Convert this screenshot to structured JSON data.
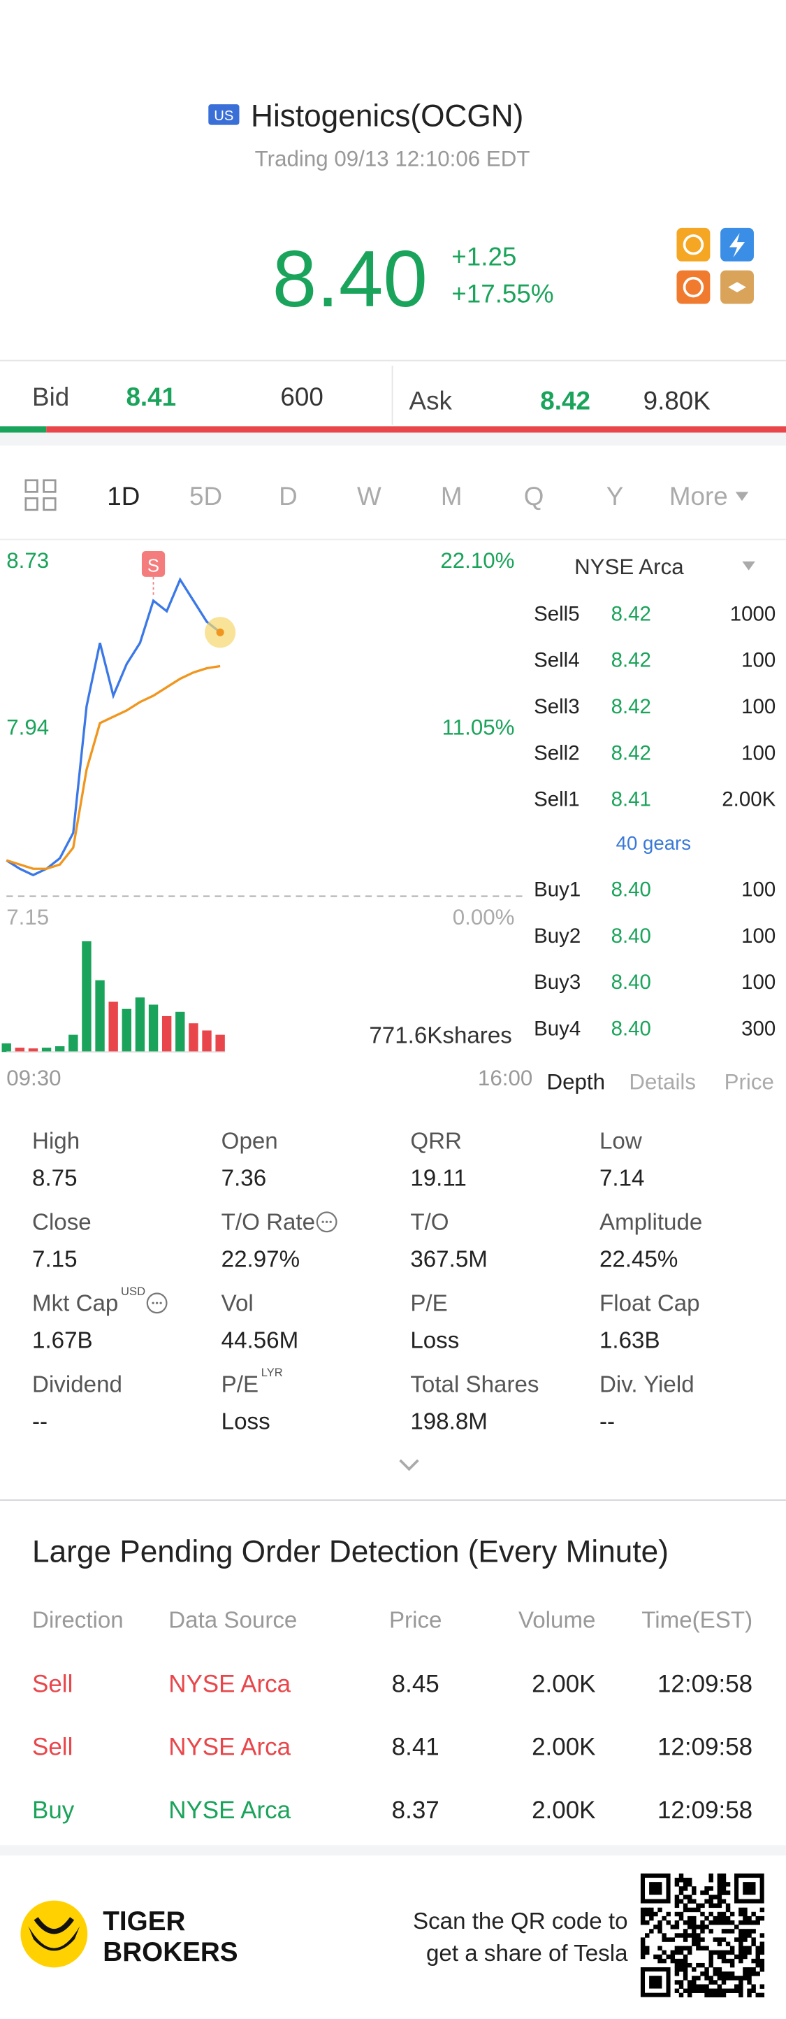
{
  "header": {
    "market": "US",
    "title": "Histogenics(OCGN)",
    "status": "Trading 09/13 12:10:06 EDT",
    "price": "8.40",
    "change": "+1.25",
    "change_percent": "+17.55%"
  },
  "quote": {
    "bid_label": "Bid",
    "bid_price": "8.41",
    "bid_size": "600",
    "ask_label": "Ask",
    "ask_price": "8.42",
    "ask_size": "9.80K"
  },
  "periods": [
    "1D",
    "5D",
    "D",
    "W",
    "M",
    "Q",
    "Y",
    "More"
  ],
  "chart_data": {
    "type": "line",
    "x": [
      "09:30",
      "09:40",
      "09:50",
      "10:00",
      "10:10",
      "10:20",
      "10:30",
      "10:40",
      "10:50",
      "11:00",
      "11:10",
      "11:20",
      "11:30",
      "11:40",
      "11:50",
      "12:00",
      "12:10"
    ],
    "series": [
      {
        "color": "#3b78e7",
        "values": [
          7.32,
          7.28,
          7.25,
          7.28,
          7.33,
          7.45,
          8.05,
          8.35,
          8.1,
          8.25,
          8.35,
          8.55,
          8.5,
          8.65,
          8.55,
          8.45,
          8.4
        ]
      },
      {
        "color": "#f0961e",
        "values": [
          7.32,
          7.3,
          7.28,
          7.28,
          7.3,
          7.38,
          7.75,
          7.97,
          8.0,
          8.03,
          8.07,
          8.1,
          8.14,
          8.18,
          8.21,
          8.23,
          8.24
        ]
      }
    ],
    "ylim": [
      7.15,
      8.73
    ],
    "yticks": [
      7.15,
      7.94,
      8.73
    ],
    "y2lim": [
      0,
      22.1
    ],
    "y2ticks": [
      {
        "value": 0,
        "label": "0.00%"
      },
      {
        "value": 11.05,
        "label": "11.05%"
      },
      {
        "value": 22.1,
        "label": "22.10%"
      }
    ],
    "xticks": [
      "09:30",
      "16:00"
    ],
    "signal": {
      "label": "S",
      "x": "11:20"
    },
    "volume": {
      "label": "771.6Kshares",
      "values": [
        60,
        30,
        25,
        30,
        40,
        120,
        771.6,
        500,
        350,
        300,
        380,
        330,
        250,
        280,
        200,
        150,
        120
      ]
    },
    "up_color": "#1aa35a",
    "down_color": "#e8464a"
  },
  "order_book": {
    "exchange": "NYSE Arca",
    "sells": [
      {
        "label": "Sell5",
        "price": "8.42",
        "size": "1000"
      },
      {
        "label": "Sell4",
        "price": "8.42",
        "size": "100"
      },
      {
        "label": "Sell3",
        "price": "8.42",
        "size": "100"
      },
      {
        "label": "Sell2",
        "price": "8.42",
        "size": "100"
      },
      {
        "label": "Sell1",
        "price": "8.41",
        "size": "2.00K"
      }
    ],
    "levels": "40 gears",
    "buys": [
      {
        "label": "Buy1",
        "price": "8.40",
        "size": "100"
      },
      {
        "label": "Buy2",
        "price": "8.40",
        "size": "100"
      },
      {
        "label": "Buy3",
        "price": "8.40",
        "size": "100"
      },
      {
        "label": "Buy4",
        "price": "8.40",
        "size": "300"
      }
    ],
    "tabs": [
      "Depth",
      "Details",
      "Price"
    ]
  },
  "stats": [
    {
      "label": "High",
      "value": "8.75"
    },
    {
      "label": "Open",
      "value": "7.36"
    },
    {
      "label": "QRR",
      "value": "19.11"
    },
    {
      "label": "Low",
      "value": "7.14"
    },
    {
      "label": "Close",
      "value": "7.15"
    },
    {
      "label": "T/O Rate",
      "value": "22.97%",
      "info": true
    },
    {
      "label": "T/O",
      "value": "367.5M"
    },
    {
      "label": "Amplitude",
      "value": "22.45%"
    },
    {
      "label": "Mkt Cap",
      "value": "1.67B",
      "sup": "USD",
      "info": true
    },
    {
      "label": "Vol",
      "value": "44.56M"
    },
    {
      "label": "P/E",
      "value": "Loss"
    },
    {
      "label": "Float Cap",
      "value": "1.63B"
    },
    {
      "label": "Dividend",
      "value": "--"
    },
    {
      "label": "P/E",
      "value": "Loss",
      "sup": "LYR"
    },
    {
      "label": "Total Shares",
      "value": "198.8M"
    },
    {
      "label": "Div. Yield",
      "value": "--"
    }
  ],
  "pending_orders": {
    "title": "Large Pending Order Detection (Every Minute)",
    "columns": [
      "Direction",
      "Data Source",
      "Price",
      "Volume",
      "Time(EST)"
    ],
    "rows": [
      {
        "direction": "Sell",
        "source": "NYSE Arca",
        "price": "8.45",
        "volume": "2.00K",
        "time": "12:09:58",
        "color": "#e8464a"
      },
      {
        "direction": "Sell",
        "source": "NYSE Arca",
        "price": "8.41",
        "volume": "2.00K",
        "time": "12:09:58",
        "color": "#e8464a"
      },
      {
        "direction": "Buy",
        "source": "NYSE Arca",
        "price": "8.37",
        "volume": "2.00K",
        "time": "12:09:58",
        "color": "#1aa35a"
      }
    ]
  },
  "footer": {
    "brand": [
      "TIGER",
      "BROKERS"
    ],
    "promo": [
      "Scan the QR code to",
      "get a share of Tesla"
    ]
  }
}
